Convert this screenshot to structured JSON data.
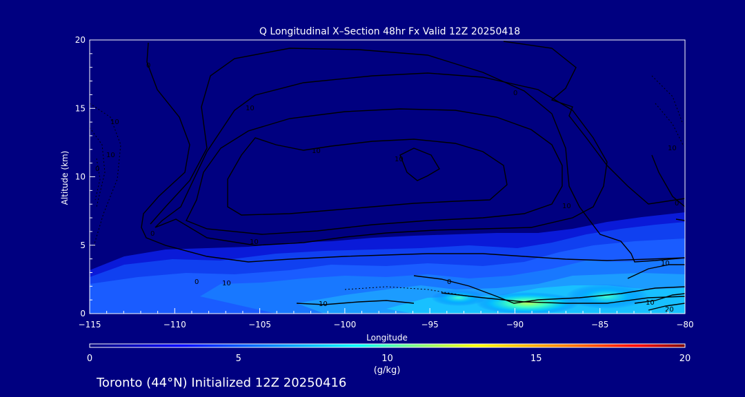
{
  "colors": {
    "background": "#000080",
    "plot_background": "#000080",
    "contour": "#000000",
    "text": "#ffffff"
  },
  "chart_data": {
    "type": "heatmap",
    "title": "Q Longitudinal X–Section 48hr  Fx Valid 12Z 20250418",
    "xlabel": "Longitude",
    "ylabel": "Altitude (km)",
    "xlim": [
      -115,
      -80
    ],
    "ylim": [
      0,
      20
    ],
    "x_ticks": [
      -115,
      -110,
      -105,
      -100,
      -95,
      -90,
      -85,
      -80
    ],
    "x_tick_labels": [
      "−115",
      "−110",
      "−105",
      "−100",
      "−95",
      "−90",
      "−85",
      "−80"
    ],
    "y_ticks": [
      0,
      5,
      10,
      15,
      20
    ],
    "y_tick_labels": [
      "0",
      "5",
      "10",
      "15",
      "20"
    ],
    "colorbar": {
      "label": "(g/kg)",
      "range": [
        0,
        20
      ],
      "ticks": [
        0,
        5,
        10,
        15,
        20
      ],
      "tick_labels": [
        "0",
        "5",
        "10",
        "15",
        "20"
      ],
      "colormap": [
        "#000080",
        "#0000ff",
        "#0080ff",
        "#00ffff",
        "#80ff80",
        "#ffff00",
        "#ff8000",
        "#ff0000",
        "#800000"
      ]
    },
    "moisture_field": [
      {
        "lon": -115,
        "top_km": 3.0,
        "peak_gkg": 3.5
      },
      {
        "lon": -110,
        "top_km": 3.5,
        "peak_gkg": 4.0
      },
      {
        "lon": -105,
        "top_km": 4.0,
        "peak_gkg": 4.5
      },
      {
        "lon": -100,
        "top_km": 4.5,
        "peak_gkg": 5.0
      },
      {
        "lon": -95,
        "top_km": 5.0,
        "peak_gkg": 6.5
      },
      {
        "lon": -90,
        "top_km": 5.0,
        "peak_gkg": 10.0
      },
      {
        "lon": -85,
        "top_km": 6.0,
        "peak_gkg": 8.0
      },
      {
        "lon": -80,
        "top_km": 7.0,
        "peak_gkg": 7.0
      }
    ],
    "contour_labels": [
      "0",
      "10",
      "10",
      "0",
      "10",
      "10",
      "0",
      "10",
      "0",
      "0",
      "10",
      "10",
      "0",
      "10",
      "10",
      "20",
      "10",
      "10",
      "10",
      "0"
    ],
    "footer": "Toronto (44°N) Initialized 12Z 20250416"
  }
}
